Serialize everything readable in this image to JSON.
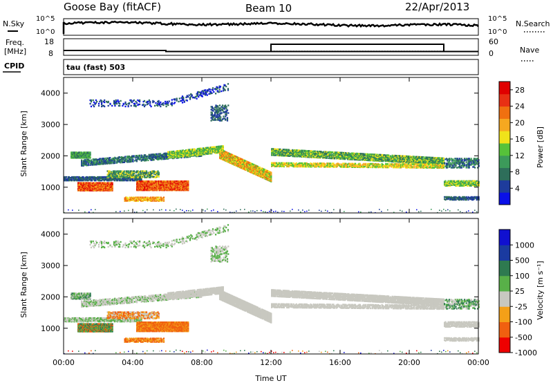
{
  "header": {
    "station": "Goose Bay (fitACF)",
    "beam": "Beam 10",
    "date": "22/Apr/2013"
  },
  "panels": {
    "nsky_label": "N.Sky",
    "nsearch_label": "N.Search",
    "freq_label_line1": "Freq.",
    "freq_label_line2": "[MHz]",
    "nave_label": "Nave",
    "cpid_label": "CPID",
    "mode_label": "tau (fast) 503",
    "noise_ticks": [
      "10^5",
      "10^0"
    ],
    "freq_ticks": [
      "18",
      "8"
    ],
    "nave_ticks": [
      "60",
      "0"
    ]
  },
  "colors": {
    "power": [
      "#0a10e8",
      "#1e3c9c",
      "#2e6e5a",
      "#3c9a5a",
      "#56c23a",
      "#f0e21a",
      "#f6a820",
      "#f07010",
      "#e83014",
      "#e00000"
    ],
    "velocity": [
      "#ee0000",
      "#f06010",
      "#f4a018",
      "#c8c8c0",
      "#58b048",
      "#2e7a50",
      "#1a3aa0",
      "#1010d0"
    ]
  },
  "chart_data": [
    {
      "type": "heatmap",
      "title": "",
      "xlabel": "Time UT",
      "ylabel": "Slant Range [km]",
      "x_ticks": [
        "00:00",
        "04:00",
        "08:00",
        "12:00",
        "16:00",
        "20:00",
        "00:00"
      ],
      "y_ticks": [
        "1000",
        "2000",
        "3000",
        "4000"
      ],
      "xlim": [
        0,
        24
      ],
      "ylim": [
        180,
        4500
      ],
      "colorbar": {
        "label": "Power [dB]",
        "ticks": [
          "4",
          "8",
          "12",
          "16",
          "20",
          "24",
          "28"
        ],
        "range": [
          0,
          30
        ]
      }
    },
    {
      "type": "heatmap",
      "title": "",
      "xlabel": "Time UT",
      "ylabel": "Slant Range [km]",
      "x_ticks": [
        "00:00",
        "04:00",
        "08:00",
        "12:00",
        "16:00",
        "20:00",
        "00:00"
      ],
      "y_ticks": [
        "1000",
        "2000",
        "3000",
        "4000"
      ],
      "xlim": [
        0,
        24
      ],
      "ylim": [
        180,
        4500
      ],
      "colorbar": {
        "label": "Velocity [m s⁻¹]",
        "ticks": [
          "1000",
          "500",
          "100",
          "25",
          "-25",
          "-100",
          "-500",
          "-1000"
        ]
      }
    }
  ]
}
